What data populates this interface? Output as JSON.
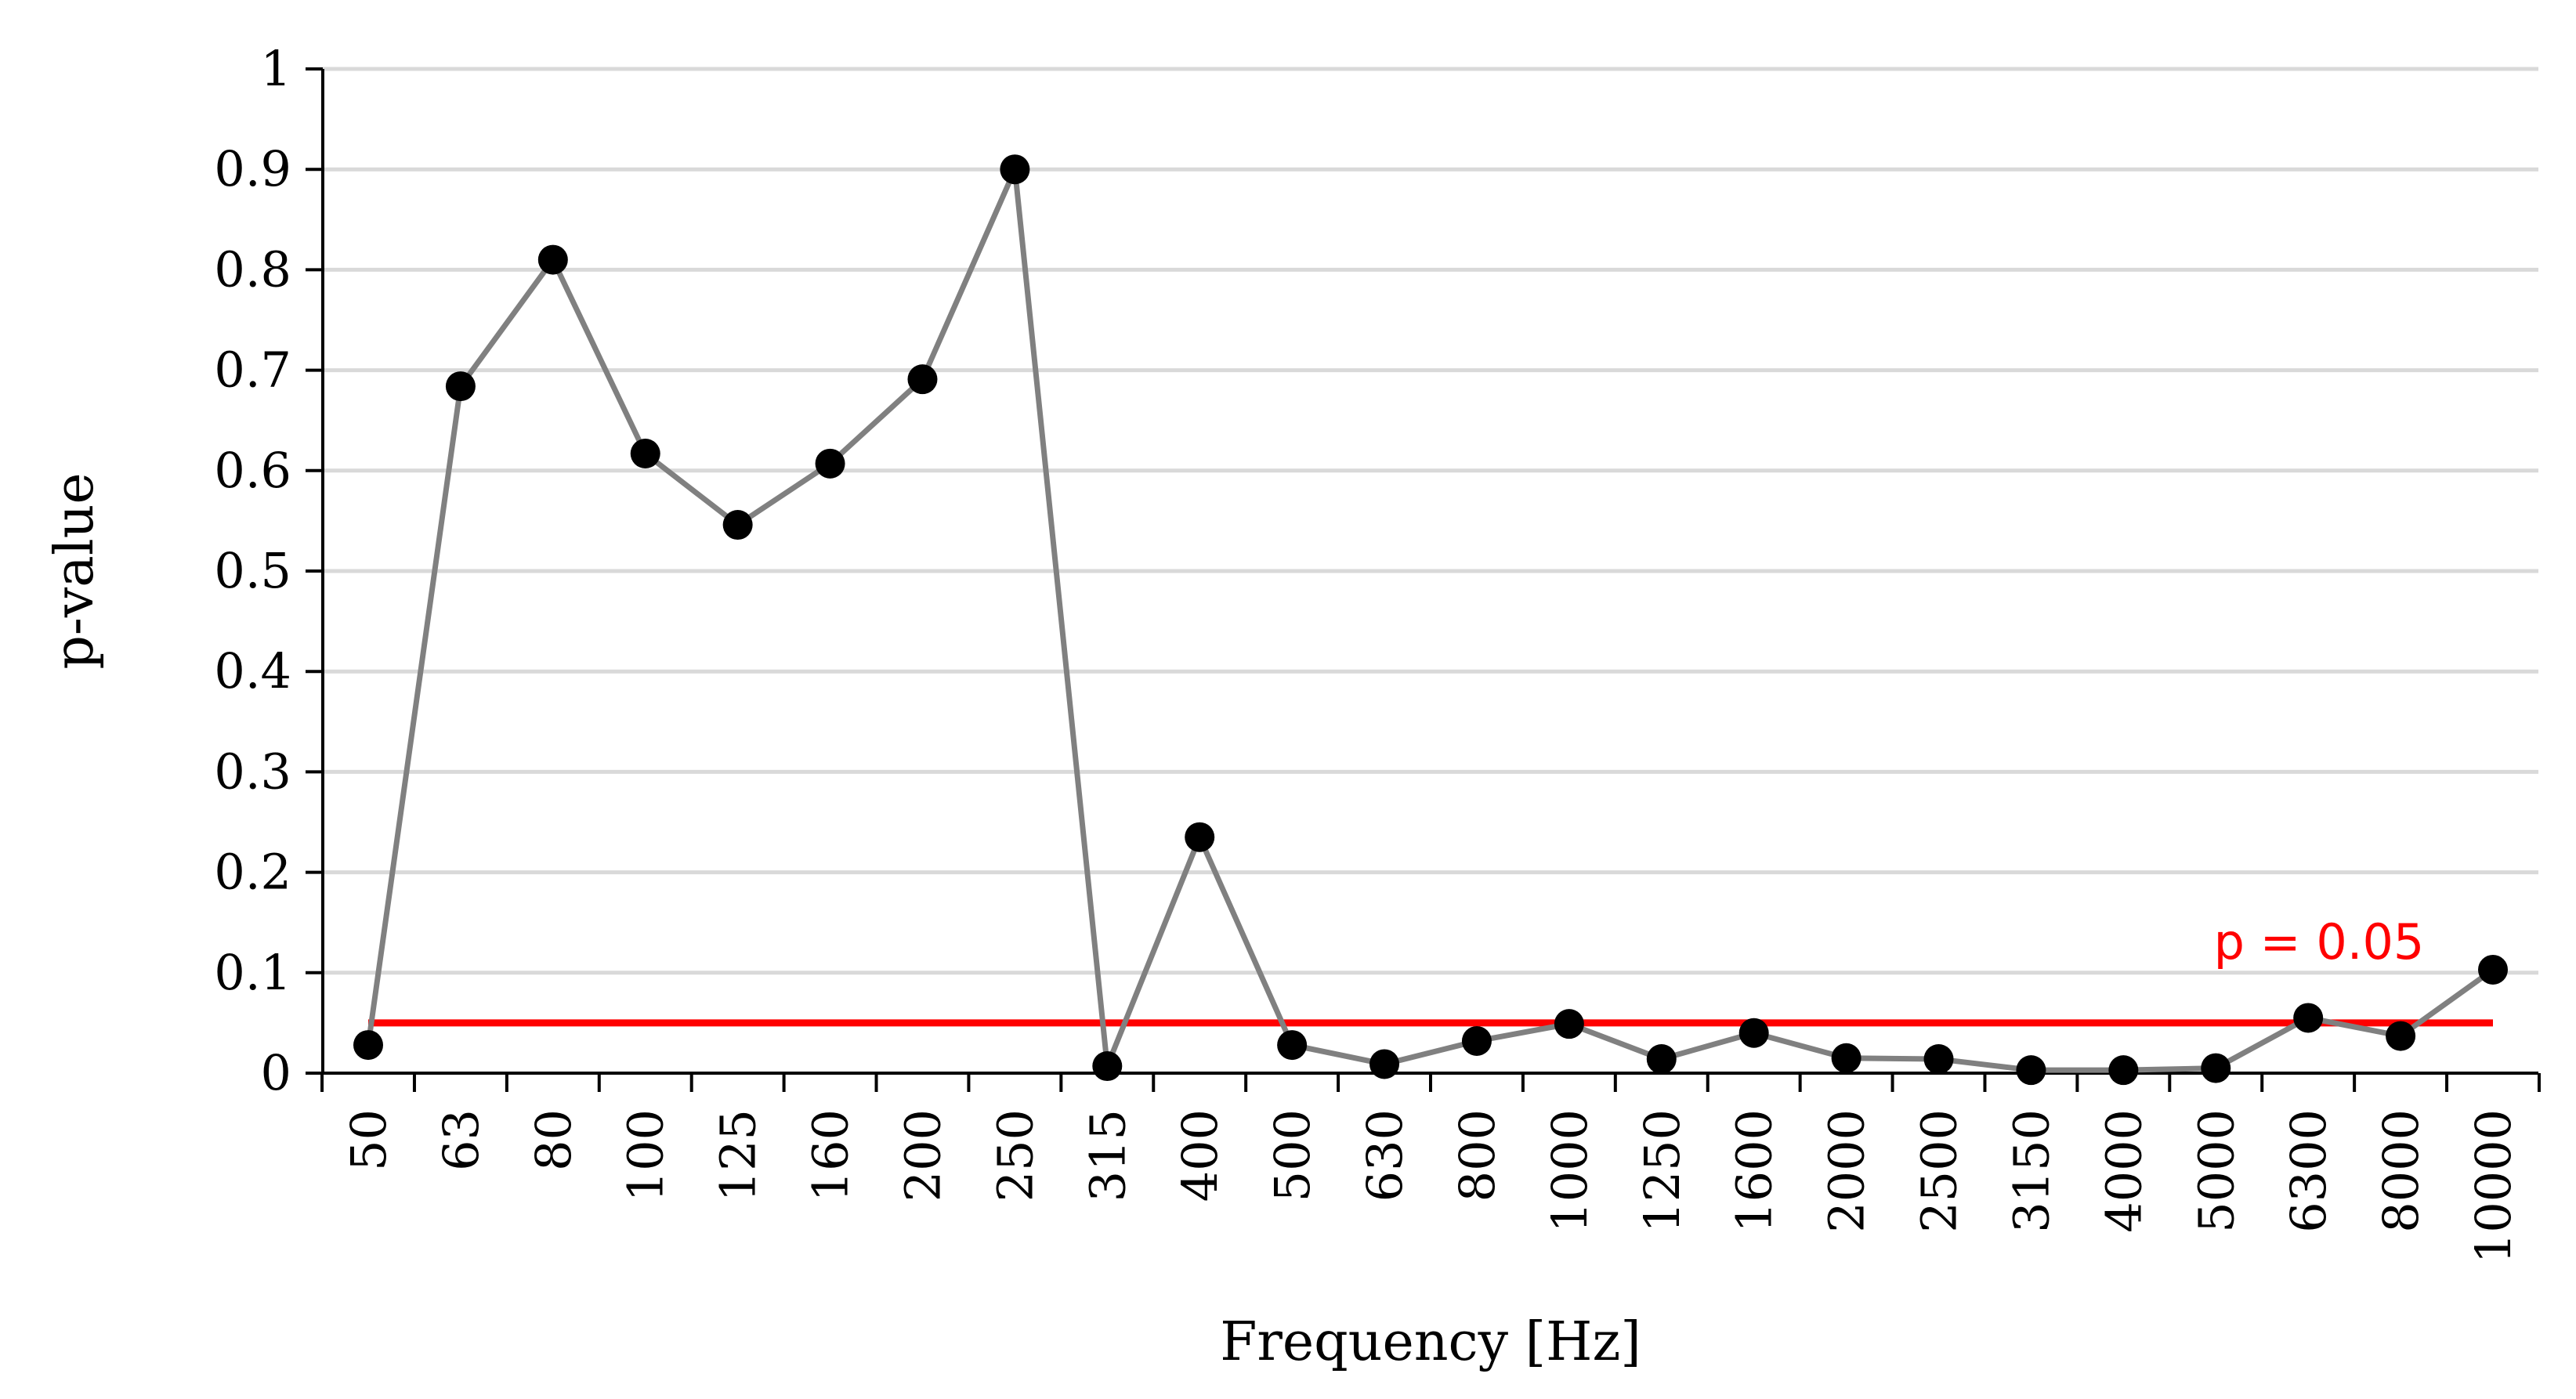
{
  "chart_data": {
    "type": "line",
    "xlabel": "Frequency [Hz]",
    "ylabel": "p-value",
    "ylim": [
      0,
      1
    ],
    "yticks": [
      "0",
      "0.1",
      "0.2",
      "0.3",
      "0.4",
      "0.5",
      "0.6",
      "0.7",
      "0.8",
      "0.9",
      "1"
    ],
    "grid": true,
    "categories": [
      "50",
      "63",
      "80",
      "100",
      "125",
      "160",
      "200",
      "250",
      "315",
      "400",
      "500",
      "630",
      "800",
      "1000",
      "1250",
      "1600",
      "2000",
      "2500",
      "3150",
      "4000",
      "5000",
      "6300",
      "8000",
      "10000"
    ],
    "series": [
      {
        "values": [
          0.028,
          0.684,
          0.81,
          0.617,
          0.546,
          0.607,
          0.691,
          0.9,
          0.007,
          0.235,
          0.028,
          0.009,
          0.032,
          0.049,
          0.014,
          0.04,
          0.015,
          0.014,
          0.003,
          0.003,
          0.005,
          0.055,
          0.037,
          0.103
        ],
        "line_color": "#808080",
        "marker_color": "#000000"
      }
    ],
    "reference_line": {
      "value": 0.05,
      "label": "p = 0.05",
      "color": "#ff0000"
    },
    "gridline_color": "#d9d9d9"
  }
}
